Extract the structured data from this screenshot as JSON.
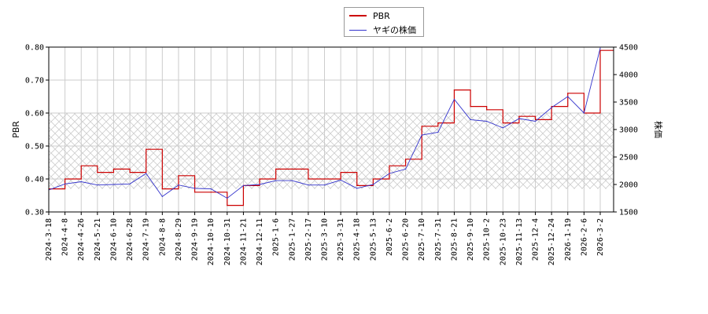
{
  "chart_data": {
    "type": "line",
    "legend": {
      "placement": "top-center",
      "entries": [
        {
          "label": "PBR",
          "color": "#cc0000"
        },
        {
          "label": "ヤギの株価",
          "color": "#3333cc"
        }
      ]
    },
    "left_axis": {
      "title": "PBR",
      "range": [
        0.3,
        0.8
      ],
      "ticks": [
        "0.30",
        "0.40",
        "0.50",
        "0.60",
        "0.70",
        "0.80"
      ]
    },
    "right_axis": {
      "title": "株価",
      "range": [
        1500,
        4500
      ],
      "ticks": [
        "1500",
        "2000",
        "2500",
        "3000",
        "3500",
        "4000",
        "4500"
      ]
    },
    "x_ticks": [
      "2024-3-18",
      "2024-4-8",
      "2024-4-26",
      "2024-5-21",
      "2024-6-10",
      "2024-6-28",
      "2024-7-19",
      "2024-8-8",
      "2024-8-29",
      "2024-9-19",
      "2024-10-10",
      "2024-10-31",
      "2024-11-21",
      "2024-12-11",
      "2025-1-6",
      "2025-1-27",
      "2025-2-17",
      "2025-3-10",
      "2025-3-31",
      "2025-4-18",
      "2025-5-13",
      "2025-6-2",
      "2025-6-20",
      "2025-7-10",
      "2025-7-31",
      "2025-8-21",
      "2025-9-10",
      "2025-10-2",
      "2025-10-23",
      "2025-11-13",
      "2025-12-4",
      "2025-12-24",
      "2026-1-19",
      "2026-2-6",
      "2026-3-2"
    ],
    "grid": true,
    "hatched_band": {
      "axis": "left",
      "range": [
        0.37,
        0.6
      ]
    },
    "series": [
      {
        "name": "PBR",
        "axis": "left",
        "color": "#cc0000",
        "x": [
          0,
          1,
          2,
          3,
          4,
          5,
          6,
          7,
          8,
          9,
          10,
          11,
          12,
          13,
          14,
          15,
          16,
          17,
          18,
          19,
          20,
          21,
          22,
          23,
          24,
          25,
          26,
          27,
          28,
          29,
          30,
          31,
          32,
          33,
          34
        ],
        "values": [
          0.37,
          0.4,
          0.44,
          0.42,
          0.43,
          0.42,
          0.49,
          0.37,
          0.41,
          0.36,
          0.36,
          0.32,
          0.38,
          0.4,
          0.43,
          0.43,
          0.4,
          0.4,
          0.42,
          0.38,
          0.4,
          0.44,
          0.46,
          0.56,
          0.57,
          0.67,
          0.62,
          0.61,
          0.57,
          0.59,
          0.58,
          0.62,
          0.66,
          0.6,
          0.79
        ]
      },
      {
        "name": "ヤギの株価",
        "axis": "right",
        "color": "#3333cc",
        "x": [
          0,
          1,
          2,
          3,
          4,
          5,
          6,
          7,
          8,
          9,
          10,
          11,
          12,
          13,
          14,
          15,
          16,
          17,
          18,
          19,
          20,
          21,
          22,
          23,
          24,
          25,
          26,
          27,
          28,
          29,
          30,
          31,
          32,
          33,
          34
        ],
        "values": [
          1900,
          2010,
          2050,
          1990,
          2000,
          2010,
          2200,
          1780,
          1990,
          1930,
          1920,
          1750,
          1980,
          2000,
          2070,
          2070,
          1990,
          1990,
          2080,
          1930,
          2000,
          2200,
          2280,
          2900,
          2950,
          3550,
          3180,
          3150,
          3030,
          3200,
          3150,
          3400,
          3600,
          3300,
          4480
        ]
      }
    ]
  }
}
